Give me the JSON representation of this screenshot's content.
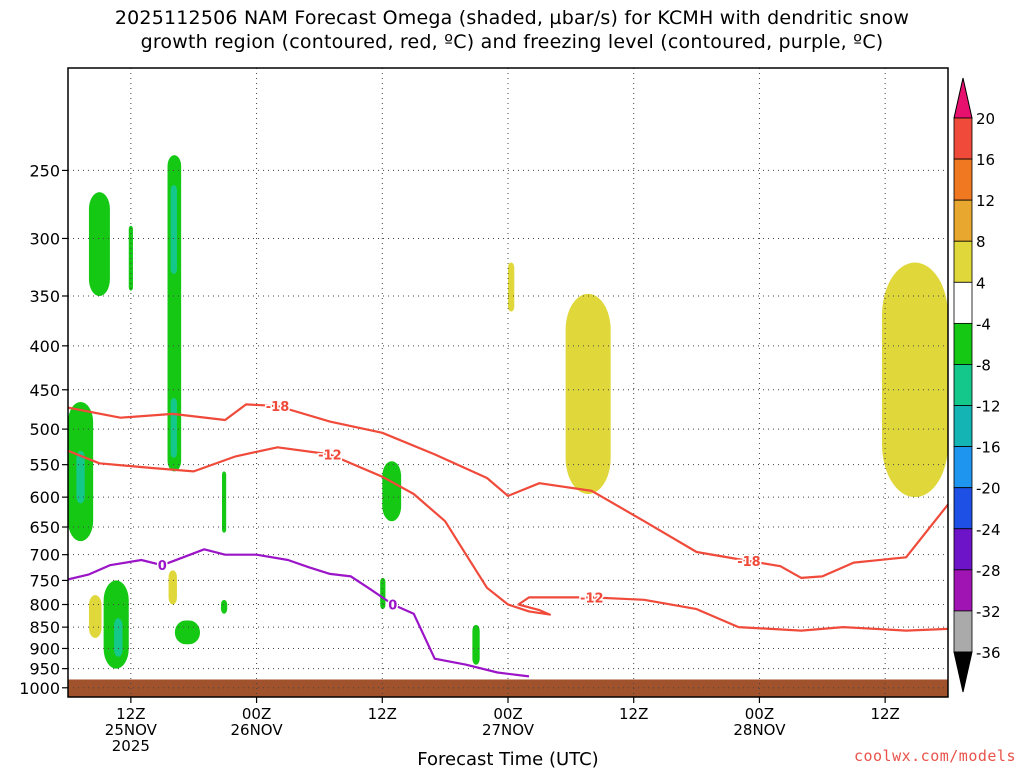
{
  "title": {
    "line1": "2025112506 NAM Forecast Omega (shaded, µbar/s) for KCMH with dendritic snow",
    "line2": "growth region (contoured, red, ºC) and freezing level (contoured, purple, ºC)"
  },
  "credit": "coolwx.com/models",
  "chart_data": {
    "type": "heatmap",
    "xlabel": "Forecast Time (UTC)",
    "ylabel": "",
    "y_log_pressure": true,
    "ylim_hPa": [
      1025,
      190
    ],
    "xlim_hours": [
      0,
      84
    ],
    "grid": true,
    "y_ticks": [
      250,
      300,
      350,
      400,
      450,
      500,
      550,
      600,
      650,
      700,
      750,
      800,
      850,
      900,
      950,
      1000
    ],
    "x_ticks": [
      {
        "hour": 6,
        "lines": [
          "12Z",
          "25NOV",
          "2025"
        ]
      },
      {
        "hour": 18,
        "lines": [
          "00Z",
          "26NOV"
        ]
      },
      {
        "hour": 30,
        "lines": [
          "12Z"
        ]
      },
      {
        "hour": 42,
        "lines": [
          "00Z",
          "27NOV"
        ]
      },
      {
        "hour": 54,
        "lines": [
          "12Z"
        ]
      },
      {
        "hour": 66,
        "lines": [
          "00Z",
          "28NOV"
        ]
      },
      {
        "hour": 78,
        "lines": [
          "12Z"
        ]
      }
    ],
    "colorbar": {
      "labels": [
        "20",
        "16",
        "12",
        "8",
        "4",
        "-4",
        "-8",
        "-12",
        "-16",
        "-20",
        "-24",
        "-28",
        "-32",
        "-36"
      ],
      "colors_top_to_bottom": [
        "#e8106e",
        "#f04a3a",
        "#f07820",
        "#e8a830",
        "#e0d83a",
        "#ffffff",
        "#14c814",
        "#14c88c",
        "#14b4b4",
        "#1e96f0",
        "#1e50e6",
        "#6e14c8",
        "#a014b4",
        "#aaaaaa",
        "#000000"
      ]
    },
    "ground": {
      "color": "#a0522d",
      "pressure_top_hPa": 978
    },
    "omega_regions": [
      {
        "band": "-8",
        "color": "#14c814",
        "hour_range": [
          2.0,
          4.0
        ],
        "pressure_range": [
          265,
          350
        ]
      },
      {
        "band": "-8",
        "color": "#14c814",
        "hour_range": [
          5.8,
          6.2
        ],
        "pressure_range": [
          290,
          345
        ]
      },
      {
        "band": "-8",
        "color": "#14c814",
        "hour_range": [
          9.5,
          10.8
        ],
        "pressure_range": [
          240,
          560
        ]
      },
      {
        "band": "-12",
        "color": "#14c88c",
        "hour_range": [
          9.8,
          10.4
        ],
        "pressure_range": [
          260,
          330
        ]
      },
      {
        "band": "-12",
        "color": "#14c88c",
        "hour_range": [
          9.8,
          10.4
        ],
        "pressure_range": [
          460,
          540
        ]
      },
      {
        "band": "-8",
        "color": "#14c814",
        "hour_range": [
          0.0,
          2.4
        ],
        "pressure_range": [
          465,
          675
        ]
      },
      {
        "band": "-12",
        "color": "#14c88c",
        "hour_range": [
          0.8,
          1.6
        ],
        "pressure_range": [
          530,
          610
        ]
      },
      {
        "band": "-8",
        "color": "#14c814",
        "hour_range": [
          14.7,
          15.1
        ],
        "pressure_range": [
          560,
          660
        ]
      },
      {
        "band": "-8",
        "color": "#14c814",
        "hour_range": [
          30.0,
          31.8
        ],
        "pressure_range": [
          545,
          640
        ]
      },
      {
        "band": "-8",
        "color": "#14c814",
        "hour_range": [
          3.4,
          5.8
        ],
        "pressure_range": [
          750,
          950
        ]
      },
      {
        "band": "-12",
        "color": "#14c88c",
        "hour_range": [
          4.4,
          5.2
        ],
        "pressure_range": [
          830,
          920
        ]
      },
      {
        "band": "-8",
        "color": "#14c814",
        "hour_range": [
          10.2,
          12.6
        ],
        "pressure_range": [
          835,
          890
        ]
      },
      {
        "band": "-8",
        "color": "#14c814",
        "hour_range": [
          14.6,
          15.2
        ],
        "pressure_range": [
          790,
          820
        ]
      },
      {
        "band": "-8",
        "color": "#14c814",
        "hour_range": [
          29.8,
          30.3
        ],
        "pressure_range": [
          745,
          810
        ]
      },
      {
        "band": "-8",
        "color": "#14c814",
        "hour_range": [
          38.6,
          39.3
        ],
        "pressure_range": [
          845,
          940
        ]
      },
      {
        "band": "4",
        "color": "#e0d83a",
        "hour_range": [
          2.0,
          3.2
        ],
        "pressure_range": [
          780,
          875
        ]
      },
      {
        "band": "4",
        "color": "#e0d83a",
        "hour_range": [
          9.6,
          10.4
        ],
        "pressure_range": [
          730,
          800
        ]
      },
      {
        "band": "4",
        "color": "#e0d83a",
        "hour_range": [
          42.0,
          42.6
        ],
        "pressure_range": [
          320,
          365
        ]
      },
      {
        "band": "4",
        "color": "#e0d83a",
        "hour_range": [
          47.5,
          51.8
        ],
        "pressure_range": [
          348,
          595
        ]
      },
      {
        "band": "4",
        "color": "#e0d83a",
        "hour_range": [
          77.7,
          84.0
        ],
        "pressure_range": [
          320,
          600
        ]
      }
    ],
    "contours": [
      {
        "label": "-18",
        "color": "#f04a3a",
        "points": [
          [
            0,
            472
          ],
          [
            5,
            485
          ],
          [
            10,
            480
          ],
          [
            15,
            488
          ],
          [
            17,
            468
          ],
          [
            20,
            470
          ],
          [
            25,
            490
          ],
          [
            30,
            505
          ],
          [
            35,
            535
          ],
          [
            40,
            570
          ],
          [
            42,
            598
          ],
          [
            45,
            578
          ],
          [
            50,
            590
          ],
          [
            55,
            640
          ],
          [
            60,
            695
          ],
          [
            65,
            712
          ],
          [
            68,
            722
          ],
          [
            70,
            745
          ],
          [
            72,
            742
          ],
          [
            75,
            715
          ],
          [
            80,
            705
          ],
          [
            84,
            612
          ]
        ]
      },
      {
        "label": "-12",
        "color": "#f04a3a",
        "points": [
          [
            0,
            530
          ],
          [
            3,
            548
          ],
          [
            8,
            555
          ],
          [
            12,
            560
          ],
          [
            16,
            538
          ],
          [
            20,
            525
          ],
          [
            25,
            535
          ],
          [
            30,
            568
          ],
          [
            33,
            595
          ],
          [
            36,
            640
          ],
          [
            38,
            700
          ],
          [
            40,
            765
          ],
          [
            42,
            800
          ],
          [
            44,
            815
          ],
          [
            46,
            822
          ],
          [
            45,
            812
          ],
          [
            43,
            800
          ],
          [
            44,
            785
          ],
          [
            50,
            785
          ],
          [
            55,
            790
          ],
          [
            60,
            810
          ],
          [
            64,
            850
          ],
          [
            70,
            858
          ],
          [
            74,
            850
          ],
          [
            80,
            858
          ],
          [
            84,
            854
          ]
        ]
      },
      {
        "label": "0",
        "color": "#9b14c8",
        "points": [
          [
            0,
            748
          ],
          [
            2,
            738
          ],
          [
            4,
            720
          ],
          [
            7,
            710
          ],
          [
            9,
            720
          ],
          [
            11,
            705
          ],
          [
            13,
            690
          ],
          [
            15,
            700
          ],
          [
            18,
            700
          ],
          [
            21,
            710
          ],
          [
            23,
            724
          ],
          [
            25,
            737
          ],
          [
            27,
            742
          ],
          [
            29,
            770
          ],
          [
            31,
            800
          ],
          [
            33,
            820
          ],
          [
            35,
            925
          ],
          [
            38,
            940
          ],
          [
            41,
            960
          ],
          [
            44,
            970
          ]
        ]
      }
    ]
  }
}
